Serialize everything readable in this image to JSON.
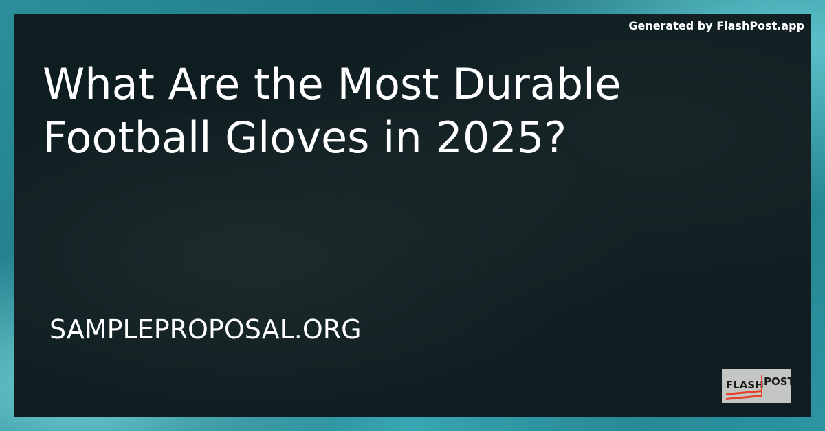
{
  "credit": "Generated by FlashPost.app",
  "title": "What Are the Most Durable Football Gloves in 2025?",
  "site": "SAMPLEPROPOSAL.ORG",
  "logo": {
    "text_left": "FLASH",
    "text_right": "POST",
    "accent": "#e8412c"
  },
  "colors": {
    "overlay": "#0e1d20",
    "background": "#2b8f9c"
  }
}
